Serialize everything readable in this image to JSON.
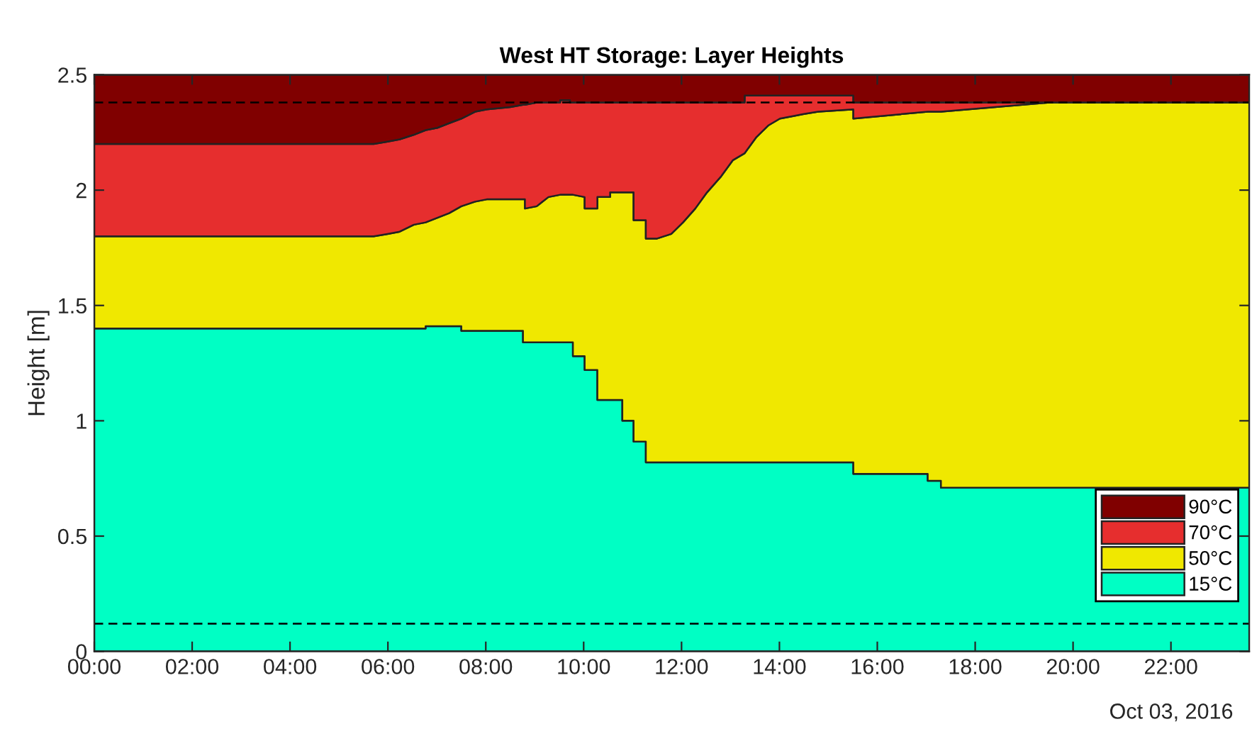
{
  "chart_data": {
    "type": "area",
    "stacked": true,
    "title": "West HT Storage: Layer Heights",
    "ylabel": "Height [m]",
    "x": [
      0,
      5.71,
      5.99,
      6.24,
      6.53,
      6.77,
      6.77,
      7.01,
      7.25,
      7.5,
      7.5,
      7.78,
      8.02,
      8.5,
      8.76,
      8.76,
      8.8,
      8.8,
      9.04,
      9.28,
      9.52,
      9.52,
      9.72,
      9.72,
      9.78,
      9.78,
      10.02,
      10.02,
      10.28,
      10.28,
      10.54,
      10.54,
      10.79,
      10.79,
      11.02,
      11.02,
      11.27,
      11.27,
      11.5,
      11.79,
      12.03,
      12.28,
      12.52,
      12.81,
      13.05,
      13.29,
      13.29,
      13.53,
      13.77,
      14.01,
      14.26,
      14.5,
      14.79,
      15.51,
      15.51,
      17.03,
      17.03,
      17.3,
      17.3,
      19.52,
      23.6
    ],
    "series": [
      {
        "name": "15°C",
        "color": "#00ffc4",
        "values": [
          1.4,
          1.4,
          1.4,
          1.4,
          1.4,
          1.4,
          1.41,
          1.41,
          1.41,
          1.41,
          1.39,
          1.39,
          1.39,
          1.39,
          1.39,
          1.34,
          1.34,
          1.34,
          1.34,
          1.34,
          1.34,
          1.34,
          1.34,
          1.34,
          1.34,
          1.28,
          1.28,
          1.22,
          1.22,
          1.09,
          1.09,
          1.09,
          1.09,
          1.0,
          1.0,
          0.91,
          0.91,
          0.82,
          0.82,
          0.82,
          0.82,
          0.82,
          0.82,
          0.82,
          0.82,
          0.82,
          0.82,
          0.82,
          0.82,
          0.82,
          0.82,
          0.82,
          0.82,
          0.82,
          0.77,
          0.77,
          0.74,
          0.74,
          0.71,
          0.71,
          0.71
        ]
      },
      {
        "name": "50°C",
        "color": "#f0e800",
        "values": [
          0.4,
          0.4,
          0.41,
          0.42,
          0.45,
          0.46,
          0.45,
          0.47,
          0.49,
          0.52,
          0.54,
          0.56,
          0.57,
          0.57,
          0.57,
          0.62,
          0.62,
          0.58,
          0.59,
          0.63,
          0.64,
          0.64,
          0.64,
          0.64,
          0.64,
          0.7,
          0.69,
          0.7,
          0.7,
          0.88,
          0.88,
          0.9,
          0.9,
          0.99,
          0.99,
          0.96,
          0.96,
          0.97,
          0.97,
          0.99,
          1.04,
          1.1,
          1.17,
          1.24,
          1.31,
          1.34,
          1.34,
          1.41,
          1.46,
          1.49,
          1.5,
          1.51,
          1.52,
          1.53,
          1.54,
          1.57,
          1.6,
          1.6,
          1.63,
          1.67,
          1.67
        ]
      },
      {
        "name": "70°C",
        "color": "#e62e2e",
        "values": [
          0.4,
          0.4,
          0.4,
          0.4,
          0.39,
          0.4,
          0.4,
          0.39,
          0.39,
          0.38,
          0.38,
          0.39,
          0.39,
          0.4,
          0.41,
          0.41,
          0.41,
          0.45,
          0.45,
          0.41,
          0.4,
          0.41,
          0.41,
          0.4,
          0.4,
          0.4,
          0.41,
          0.46,
          0.46,
          0.41,
          0.41,
          0.39,
          0.39,
          0.39,
          0.39,
          0.51,
          0.51,
          0.59,
          0.59,
          0.57,
          0.52,
          0.46,
          0.39,
          0.32,
          0.25,
          0.22,
          0.25,
          0.18,
          0.13,
          0.1,
          0.09,
          0.08,
          0.07,
          0.06,
          0.07,
          0.04,
          0.04,
          0.04,
          0.04,
          0,
          0
        ]
      },
      {
        "name": "90°C",
        "color": "#800000",
        "values": [
          0.3,
          0.3,
          0.29,
          0.28,
          0.26,
          0.24,
          0.24,
          0.23,
          0.21,
          0.19,
          0.19,
          0.16,
          0.15,
          0.14,
          0.13,
          0.13,
          0.13,
          0.13,
          0.12,
          0.12,
          0.12,
          0.11,
          0.11,
          0.12,
          0.12,
          0.12,
          0.12,
          0.12,
          0.12,
          0.12,
          0.12,
          0.12,
          0.12,
          0.12,
          0.12,
          0.12,
          0.12,
          0.12,
          0.12,
          0.12,
          0.12,
          0.12,
          0.12,
          0.12,
          0.12,
          0.12,
          0.09,
          0.09,
          0.09,
          0.09,
          0.09,
          0.09,
          0.09,
          0.09,
          0.12,
          0.12,
          0.12,
          0.12,
          0.12,
          0.12,
          0.12
        ]
      }
    ],
    "xlim": [
      0,
      23.6
    ],
    "xticks": [
      {
        "value": 0,
        "label": "00:00"
      },
      {
        "value": 2,
        "label": "02:00"
      },
      {
        "value": 4,
        "label": "04:00"
      },
      {
        "value": 6,
        "label": "06:00"
      },
      {
        "value": 8,
        "label": "08:00"
      },
      {
        "value": 10,
        "label": "10:00"
      },
      {
        "value": 12,
        "label": "12:00"
      },
      {
        "value": 14,
        "label": "14:00"
      },
      {
        "value": 16,
        "label": "16:00"
      },
      {
        "value": 18,
        "label": "18:00"
      },
      {
        "value": 20,
        "label": "20:00"
      },
      {
        "value": 22,
        "label": "22:00"
      }
    ],
    "ylim": [
      0,
      2.5
    ],
    "yticks": [
      0,
      0.5,
      1,
      1.5,
      2,
      2.5
    ],
    "ref_lines": [
      {
        "axis": "y",
        "value": 2.38,
        "color": "#000000",
        "line_style": "dashed"
      },
      {
        "axis": "y",
        "value": 0.12,
        "color": "#000000",
        "line_style": "dashed"
      }
    ],
    "annotations": [
      "Oct 03, 2016"
    ],
    "grid": false,
    "legend": "bottom right"
  }
}
